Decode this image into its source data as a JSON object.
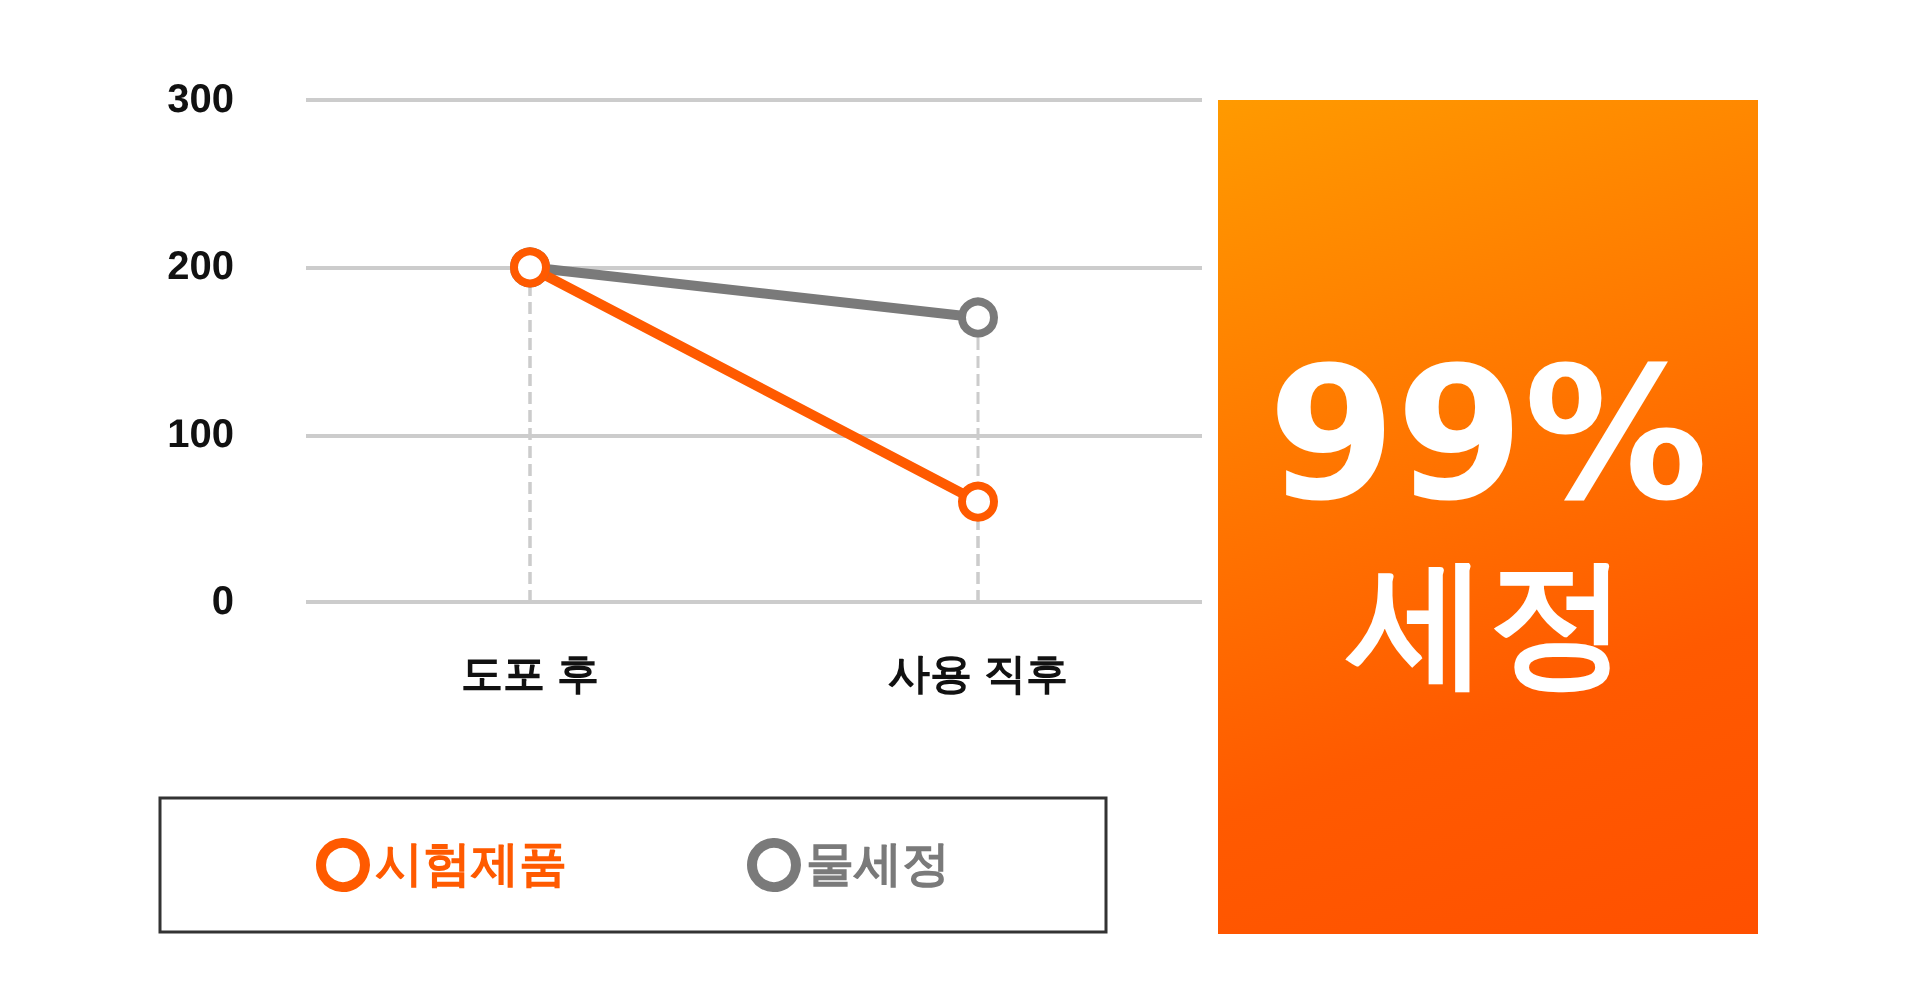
{
  "chart_data": {
    "type": "line",
    "categories": [
      "도포 후",
      "사용 직후"
    ],
    "series": [
      {
        "name": "시험제품",
        "color": "#ff5a00",
        "values": [
          200,
          60
        ]
      },
      {
        "name": "물세정",
        "color": "#7a7a7a",
        "values": [
          200,
          170
        ]
      }
    ],
    "ylim": [
      0,
      300
    ],
    "yticks": [
      0,
      100,
      200,
      300
    ],
    "grid": true,
    "legend": "bottom",
    "marker": "circle",
    "line_style": "solid",
    "annotations": [
      "99%",
      "세정"
    ]
  }
}
